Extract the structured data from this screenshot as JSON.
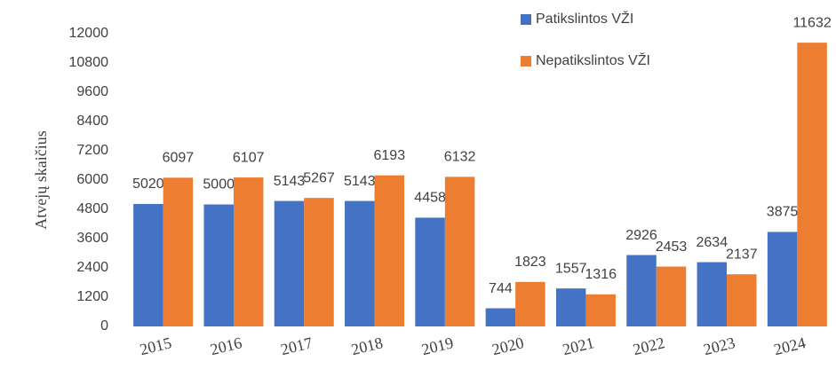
{
  "chart_data": {
    "type": "bar",
    "y_label": "Atvejų skaičius",
    "categories": [
      "2015",
      "2016",
      "2017",
      "2018",
      "2019",
      "2020",
      "2021",
      "2022",
      "2023",
      "2024"
    ],
    "series": [
      {
        "name": "Patikslintos VŽI",
        "color": "#4472c4",
        "values": [
          5020,
          5000,
          5143,
          5143,
          4458,
          744,
          1557,
          2926,
          2634,
          3875
        ]
      },
      {
        "name": "Nepatikslintos VŽI",
        "color": "#ed7d31",
        "values": [
          6097,
          6107,
          5267,
          6193,
          6132,
          1823,
          1316,
          2453,
          2137,
          11632
        ]
      }
    ],
    "ylim": [
      0,
      12000
    ],
    "yticks": [
      0,
      1200,
      2400,
      3600,
      4800,
      6000,
      7200,
      8400,
      9600,
      10800,
      12000
    ],
    "grid": false
  }
}
